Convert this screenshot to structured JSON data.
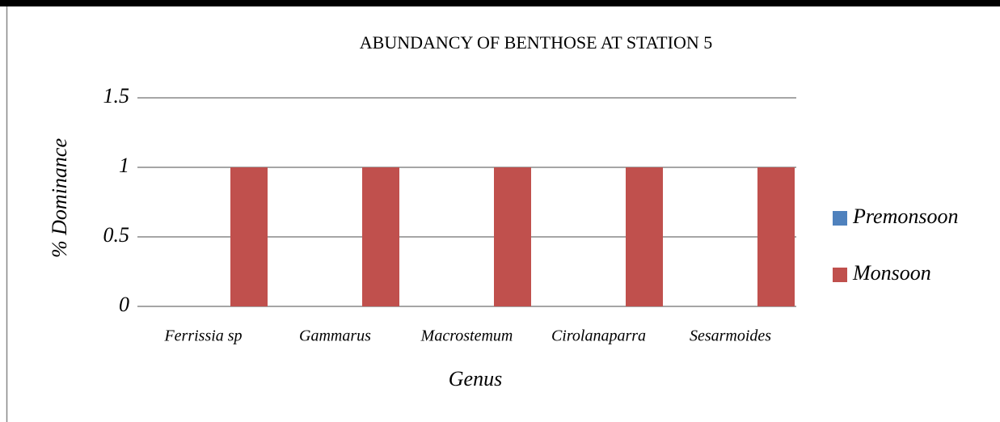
{
  "chart_data": {
    "type": "bar",
    "title": "ABUNDANCY OF BENTHOSE AT STATION 5",
    "x_label": "Genus",
    "y_label": "% Dominance",
    "categories": [
      "Ferrissia sp",
      "Gammarus",
      "Macrostemum",
      "Cirolanaparra",
      "Sesarmoides"
    ],
    "series": [
      {
        "name": "Premonsoon",
        "color": "#4f81bd",
        "values": [
          0,
          0,
          0,
          0,
          0
        ]
      },
      {
        "name": "Monsoon",
        "color": "#c0504d",
        "values": [
          1,
          1,
          1,
          1,
          1
        ]
      }
    ],
    "ylim": [
      0,
      1.5
    ],
    "yticks": [
      0,
      0.5,
      1,
      1.5
    ],
    "grid": true,
    "legend": "right"
  }
}
